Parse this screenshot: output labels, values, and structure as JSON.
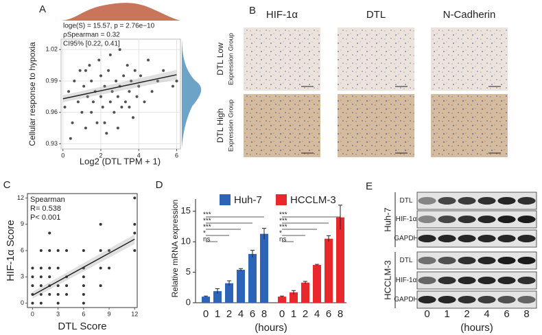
{
  "panel_labels": [
    "A",
    "B",
    "C",
    "D",
    "E"
  ],
  "chart_data": [
    {
      "type": "scatter",
      "x_label": "Log2 (DTL TPM + 1)",
      "y_label": "Cellular response to hypoxia",
      "annotations": [
        "loge(S) = 15.57, p = 2.76e−10",
        "ρSpearman = 0.32",
        "CI95% [0.22, 0.41]"
      ],
      "color": "#333333",
      "grid": true,
      "xlim": [
        -0.1,
        6.2
      ],
      "ylim": [
        0.925,
        1.03
      ],
      "xticks": [
        0,
        2,
        4,
        6
      ],
      "yticks": [
        0.93,
        0.96,
        0.99,
        1.02
      ],
      "x": [
        0.1,
        0.3,
        0.5,
        0.6,
        0.8,
        0.9,
        1.0,
        1.1,
        1.2,
        1.3,
        1.4,
        1.5,
        1.5,
        1.6,
        1.7,
        1.8,
        1.9,
        2.0,
        2.0,
        2.1,
        2.2,
        2.3,
        2.4,
        2.5,
        2.5,
        2.6,
        2.7,
        2.8,
        2.9,
        3.0,
        3.0,
        3.1,
        3.2,
        3.3,
        3.4,
        3.5,
        3.6,
        3.7,
        3.8,
        3.9,
        4.0,
        4.1,
        4.3,
        4.5,
        4.7,
        5.0,
        5.3,
        5.8,
        6.0,
        0.4,
        1.2,
        2.2,
        2.9,
        3.5
      ],
      "y": [
        0.965,
        0.98,
        0.95,
        0.99,
        0.97,
        1.0,
        0.96,
        0.985,
        0.945,
        0.975,
        1.005,
        0.96,
        0.99,
        0.97,
        0.98,
        0.95,
        1.01,
        0.975,
        0.995,
        0.965,
        0.985,
        0.94,
        1.0,
        0.97,
        1.015,
        0.98,
        0.96,
        0.99,
        0.975,
        1.02,
        0.985,
        0.965,
        0.995,
        0.97,
        1.005,
        0.98,
        0.99,
        0.955,
        1.0,
        0.975,
        0.985,
        0.995,
        0.97,
        1.01,
        0.98,
        0.99,
        1.0,
        0.985,
        0.99,
        0.935,
        1.0,
        0.95,
        0.945,
        0.965
      ],
      "fit": {
        "x": [
          0,
          6
        ],
        "y": [
          0.973,
          0.996
        ]
      }
    },
    {
      "type": "scatter",
      "x_label": "DTL Score",
      "y_label": "HIF-1α Score",
      "annotations": [
        "Spearman",
        "R= 0.538",
        "P< 0.001"
      ],
      "color": "#111111",
      "grid": false,
      "xlim": [
        -0.6,
        12.3
      ],
      "ylim": [
        -0.5,
        12.5
      ],
      "xticks": [
        0,
        3,
        6,
        9,
        12
      ],
      "yticks": [
        0,
        3,
        6,
        9,
        12
      ],
      "x": [
        0,
        0,
        0,
        0,
        1,
        1,
        1,
        1,
        1,
        2,
        2,
        2,
        2,
        2,
        3,
        3,
        3,
        3,
        3,
        4,
        4,
        4,
        4,
        6,
        6,
        6,
        6,
        6,
        6,
        8,
        8,
        8,
        8,
        9,
        9,
        12,
        12,
        12,
        12,
        0,
        2,
        1
      ],
      "y": [
        0,
        1,
        2,
        3,
        0,
        1,
        2,
        3,
        4,
        1,
        2,
        3,
        4,
        6,
        0,
        1,
        2,
        4,
        6,
        1,
        2,
        3,
        6,
        0,
        1,
        2,
        3,
        4,
        6,
        2,
        4,
        6,
        9,
        4,
        6,
        6,
        8,
        9,
        12,
        4,
        8,
        6
      ],
      "fit": {
        "x": [
          0,
          12
        ],
        "y": [
          0.9,
          7.3
        ]
      }
    },
    {
      "type": "bar",
      "x_label": "(hours)",
      "y_label": "Relative mRNA expression",
      "categories": [
        "0",
        "1",
        "2",
        "4",
        "6",
        "8"
      ],
      "ylim": [
        0,
        17
      ],
      "yticks": [
        0,
        5,
        10,
        15
      ],
      "series": [
        {
          "name": "Huh-7",
          "color": "#2e64b8",
          "values": [
            1,
            1.9,
            3.2,
            5.4,
            8,
            11.3
          ],
          "errors": [
            0.1,
            0.4,
            0.4,
            0.2,
            0.6,
            0.9
          ],
          "significance": [
            "***",
            "***",
            "***",
            "*",
            "ns"
          ]
        },
        {
          "name": "HCCLM-3",
          "color": "#e8282c",
          "values": [
            1,
            1.7,
            3.3,
            6.2,
            10.5,
            14
          ],
          "errors": [
            0.1,
            0.3,
            0.2,
            0.1,
            0.5,
            2.0
          ],
          "significance": [
            "***",
            "***",
            "***",
            "*",
            "ns"
          ]
        }
      ]
    }
  ],
  "histology": {
    "columns": [
      "HIF-1α",
      "DTL",
      "N-Cadherin"
    ],
    "rows": [
      {
        "name": "DTL Low",
        "subtitle": "Expression Group"
      },
      {
        "name": "DTL High",
        "subtitle": "Expression Group"
      }
    ]
  },
  "western_blot": {
    "lanes": [
      "0",
      "1",
      "2",
      "4",
      "6",
      "8"
    ],
    "x_label": "(hours)",
    "groups": [
      {
        "name": "Huh-7",
        "proteins": [
          "DTL",
          "HIF-1α",
          "GAPDH"
        ]
      },
      {
        "name": "HCCLM-3",
        "proteins": [
          "DTL",
          "HIF-1α",
          "GAPDH"
        ]
      }
    ]
  }
}
